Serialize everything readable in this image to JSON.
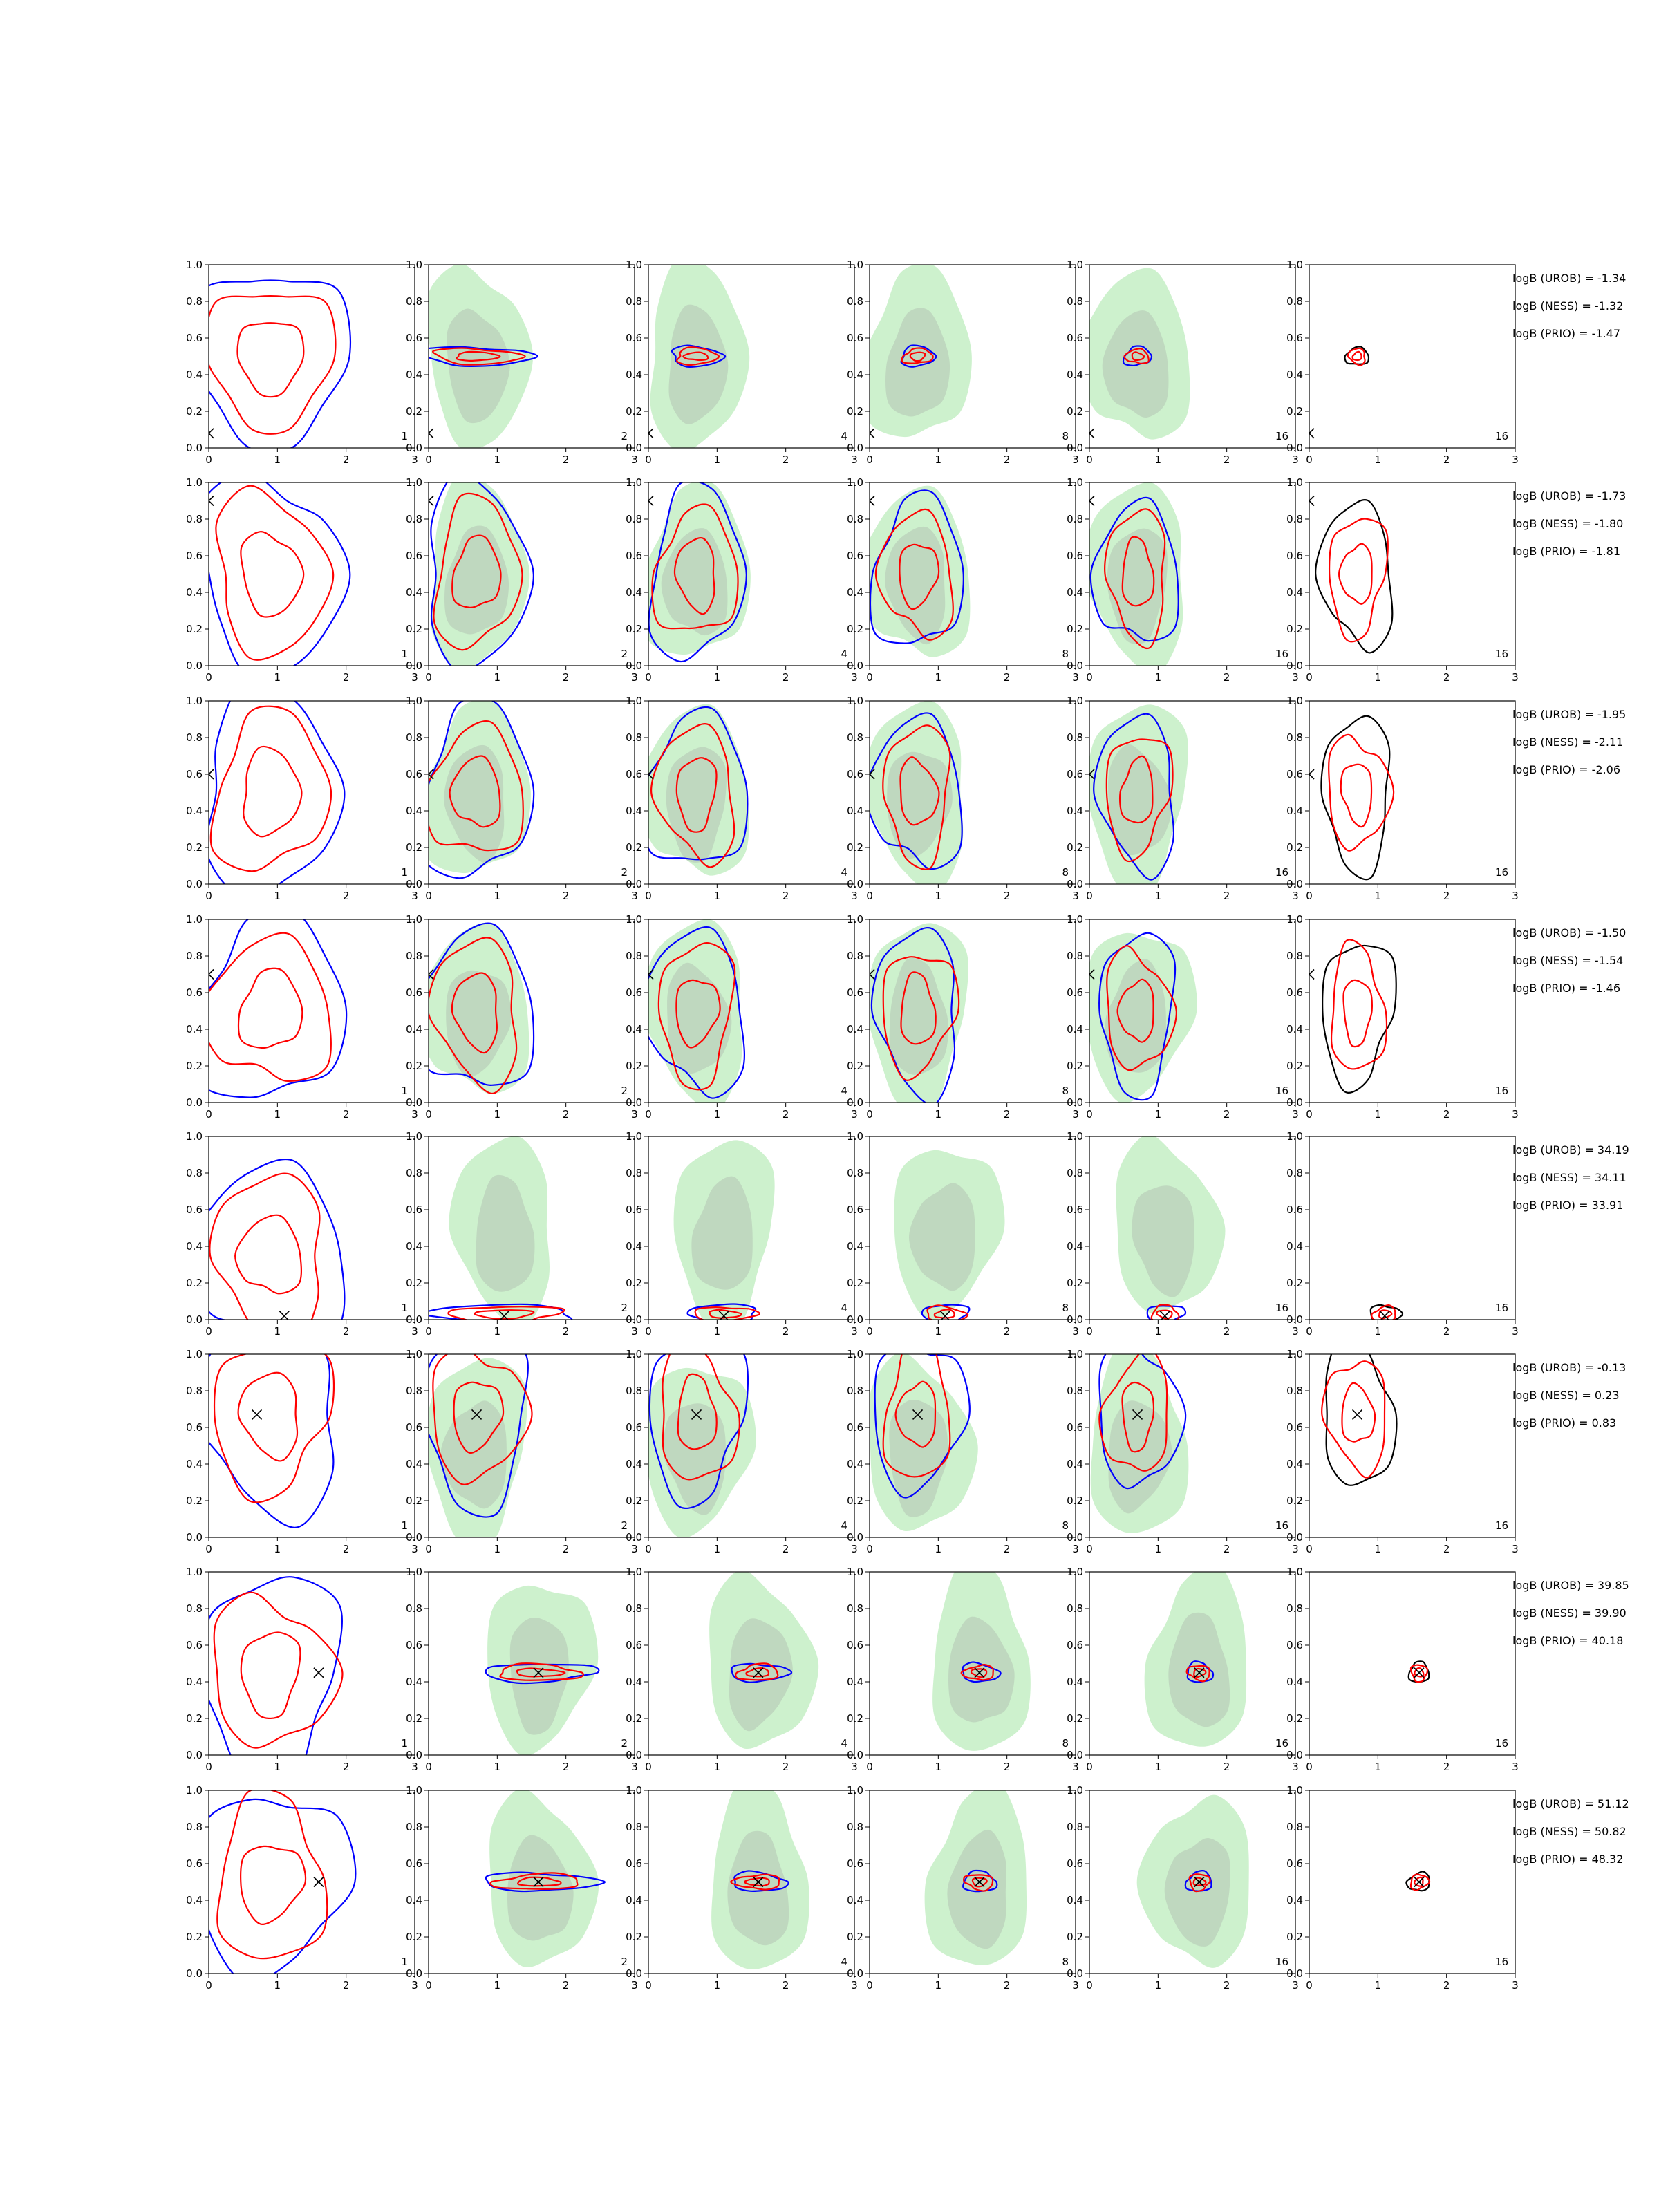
{
  "colors": {
    "urob": "#0000ff",
    "ness": "#ff0000",
    "prio": "#000000",
    "sample_fill_outer": "#90e190",
    "sample_fill_inner": "#a0a0a0"
  },
  "icons": {
    "true_value_marker": "x-marker-icon"
  },
  "chart_data": {
    "type": "contour-grid",
    "rows": 8,
    "cols": 6,
    "xlim": [
      0,
      3
    ],
    "ylim": [
      0,
      1
    ],
    "x_ticks": [
      "0",
      "1",
      "2",
      "3"
    ],
    "y_ticks": [
      "0.0",
      "0.2",
      "0.4",
      "0.6",
      "0.8",
      "1.0"
    ],
    "grid": false,
    "legend": "none",
    "column_labels": [
      "1",
      "2",
      "4",
      "8",
      "16",
      "16"
    ],
    "rows_data": [
      {
        "truth": [
          0.0,
          0.08
        ],
        "evidence": [
          "logB (UROB) = -1.34",
          "logB (NESS) = -1.32",
          "logB (PRIO) = -1.47"
        ]
      },
      {
        "truth": [
          0.0,
          0.9
        ],
        "evidence": [
          "logB (UROB) = -1.73",
          "logB (NESS) = -1.80",
          "logB (PRIO) = -1.81"
        ]
      },
      {
        "truth": [
          0.0,
          0.6
        ],
        "evidence": [
          "logB (UROB) = -1.95",
          "logB (NESS) = -2.11",
          "logB (PRIO) = -2.06"
        ]
      },
      {
        "truth": [
          0.0,
          0.7
        ],
        "evidence": [
          "logB (UROB) = -1.50",
          "logB (NESS) = -1.54",
          "logB (PRIO) = -1.46"
        ]
      },
      {
        "truth": [
          1.1,
          0.02
        ],
        "evidence": [
          "logB (UROB) = 34.19",
          "logB (NESS) = 34.11",
          "logB (PRIO) = 33.91"
        ]
      },
      {
        "truth": [
          0.7,
          0.67
        ],
        "evidence": [
          "logB (UROB) = -0.13",
          "logB (NESS) = 0.23",
          "logB (PRIO) = 0.83"
        ]
      },
      {
        "truth": [
          1.6,
          0.45
        ],
        "evidence": [
          "logB (UROB) = 39.85",
          "logB (NESS) = 39.90",
          "logB (PRIO) = 40.18"
        ]
      },
      {
        "truth": [
          1.6,
          0.5
        ],
        "evidence": [
          "logB (UROB) = 51.12",
          "logB (NESS) = 50.82",
          "logB (PRIO) = 48.32"
        ]
      }
    ]
  }
}
